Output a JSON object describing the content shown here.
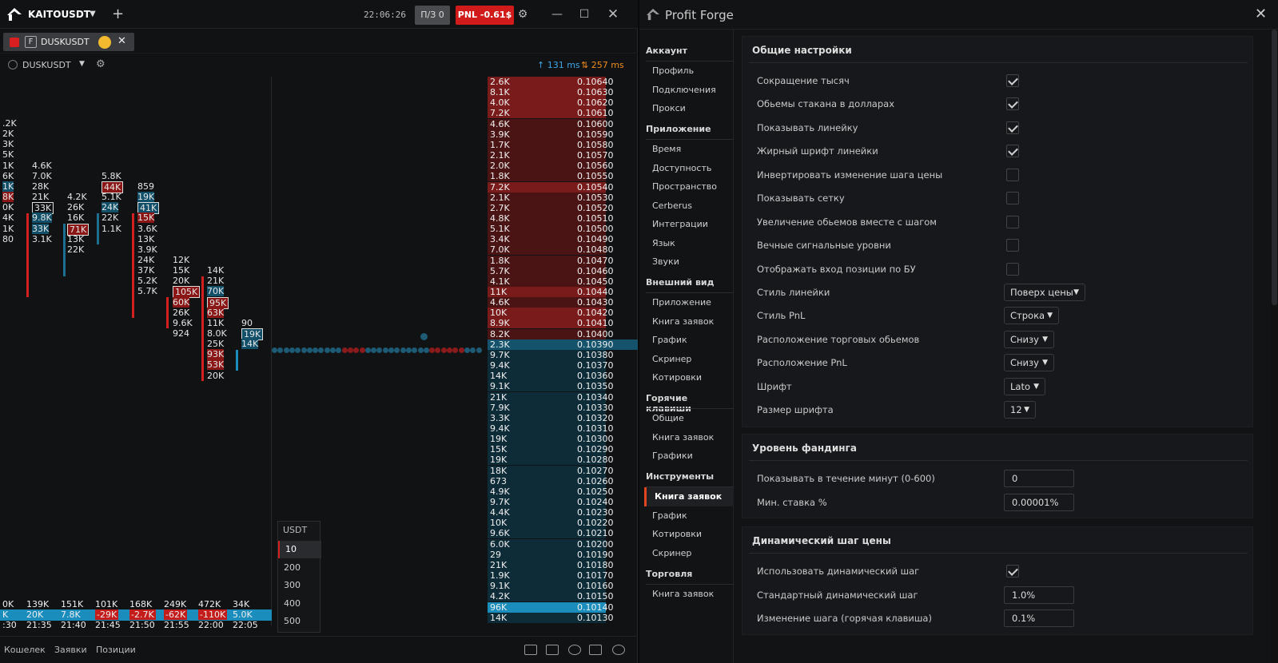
{
  "titlebar": {
    "symbol": "KAITOUSDT",
    "time": "22:06:26",
    "pz": "П/З 0",
    "pnl": "PNL -0.61$"
  },
  "tab": {
    "f": "F",
    "name": "DUSKUSDT"
  },
  "symrow": {
    "name": "DUSKUSDT",
    "ping1": "↑ 131 ms",
    "ping2": "⇅ 257 ms"
  },
  "cluster": {
    "edge": [
      ".2K",
      "2K",
      "3K",
      "5K",
      "1K",
      "6K",
      "1K",
      "8K",
      "0K",
      "4K",
      "1K",
      "80"
    ],
    "c1": [
      "4.6K",
      "7.0K",
      "28K",
      "21K",
      "33K",
      "9.8K",
      "33K",
      "3.1K"
    ],
    "c2": [
      "4.2K",
      "26K",
      "16K",
      "71K",
      "13K",
      "22K"
    ],
    "c3": [
      "5.8K",
      "44K",
      "5.1K",
      "24K",
      "22K",
      "1.1K"
    ],
    "c4": [
      "859",
      "19K",
      "41K",
      "15K",
      "3.6K",
      "13K",
      "3.9K",
      "24K",
      "37K",
      "5.2K",
      "5.7K"
    ],
    "c5": [
      "12K",
      "15K",
      "20K",
      "105K",
      "60K",
      "26K",
      "9.6K",
      "924"
    ],
    "c6": [
      "14K",
      "21K",
      "70K",
      "95K",
      "63K",
      "11K",
      "8.0K",
      "25K",
      "93K",
      "53K",
      "20K"
    ],
    "c7": [
      "90",
      "19K",
      "14K"
    ],
    "totals": [
      "0K",
      "139K",
      "151K",
      "101K",
      "168K",
      "249K",
      "472K",
      "34K"
    ],
    "delta": [
      "K",
      "20K",
      "7.8K",
      "-29K",
      "-2.7K",
      "-62K",
      "-110K",
      "5.0K"
    ],
    "times": [
      ":30",
      "21:35",
      "21:40",
      "21:45",
      "21:50",
      "21:55",
      "22:00",
      "22:05"
    ]
  },
  "lot": {
    "header": "USDT",
    "options": [
      "10",
      "200",
      "300",
      "400",
      "500"
    ]
  },
  "book": {
    "asks": [
      [
        "2.6K",
        "0.10640"
      ],
      [
        "8.1K",
        "0.10630"
      ],
      [
        "4.0K",
        "0.10620"
      ],
      [
        "7.2K",
        "0.10610"
      ],
      [
        "4.6K",
        "0.10600"
      ],
      [
        "3.9K",
        "0.10590"
      ],
      [
        "1.7K",
        "0.10580"
      ],
      [
        "2.1K",
        "0.10570"
      ],
      [
        "2.0K",
        "0.10560"
      ],
      [
        "1.8K",
        "0.10550"
      ],
      [
        "7.2K",
        "0.10540"
      ],
      [
        "2.1K",
        "0.10530"
      ],
      [
        "2.7K",
        "0.10520"
      ],
      [
        "4.8K",
        "0.10510"
      ],
      [
        "5.1K",
        "0.10500"
      ],
      [
        "3.4K",
        "0.10490"
      ],
      [
        "7.0K",
        "0.10480"
      ],
      [
        "1.8K",
        "0.10470"
      ],
      [
        "5.7K",
        "0.10460"
      ],
      [
        "4.1K",
        "0.10450"
      ],
      [
        "11K",
        "0.10440"
      ],
      [
        "4.6K",
        "0.10430"
      ],
      [
        "10K",
        "0.10420"
      ],
      [
        "8.9K",
        "0.10410"
      ],
      [
        "8.2K",
        "0.10400"
      ]
    ],
    "bids": [
      [
        "2.3K",
        "0.10390"
      ],
      [
        "9.7K",
        "0.10380"
      ],
      [
        "9.4K",
        "0.10370"
      ],
      [
        "14K",
        "0.10360"
      ],
      [
        "9.1K",
        "0.10350"
      ],
      [
        "21K",
        "0.10340"
      ],
      [
        "7.9K",
        "0.10330"
      ],
      [
        "3.3K",
        "0.10320"
      ],
      [
        "9.4K",
        "0.10310"
      ],
      [
        "19K",
        "0.10300"
      ],
      [
        "15K",
        "0.10290"
      ],
      [
        "19K",
        "0.10280"
      ],
      [
        "18K",
        "0.10270"
      ],
      [
        "673",
        "0.10260"
      ],
      [
        "4.9K",
        "0.10250"
      ],
      [
        "9.7K",
        "0.10240"
      ],
      [
        "4.4K",
        "0.10230"
      ],
      [
        "10K",
        "0.10220"
      ],
      [
        "9.6K",
        "0.10210"
      ],
      [
        "6.0K",
        "0.10200"
      ],
      [
        "29",
        "0.10190"
      ],
      [
        "21K",
        "0.10180"
      ],
      [
        "1.9K",
        "0.10170"
      ],
      [
        "9.1K",
        "0.10160"
      ],
      [
        "4.2K",
        "0.10150"
      ],
      [
        "96K",
        "0.10140"
      ],
      [
        "14K",
        "0.10130"
      ]
    ]
  },
  "statusbar": {
    "wallet": "Кошелек",
    "orders": "Заявки",
    "positions": "Позиции"
  },
  "settings": {
    "app_title": "Profit Forge",
    "nav": {
      "s_account": "Аккаунт",
      "profile": "Профиль",
      "connections": "Подключения",
      "proxy": "Прокси",
      "s_app": "Приложение",
      "time": "Время",
      "access": "Доступность",
      "spaces": "Пространство",
      "cerberus": "Cerberus",
      "integrations": "Интеграции",
      "language": "Язык",
      "sounds": "Звуки",
      "s_view": "Внешний вид",
      "v_app": "Приложение",
      "v_book": "Книга заявок",
      "v_chart": "График",
      "v_screener": "Скринер",
      "v_quotes": "Котировки",
      "s_hotkeys": "Горячие клавиши",
      "h_general": "Общие",
      "h_book": "Книга заявок",
      "h_charts": "Графики",
      "s_tools": "Инструменты",
      "t_book": "Книга заявок",
      "t_chart": "График",
      "t_quotes": "Котировки",
      "t_screener": "Скринер",
      "s_trading": "Торговля",
      "tr_book": "Книга заявок"
    },
    "general": {
      "title": "Общие настройки",
      "rows": [
        "Сокращение тысяч",
        "Обьемы стакана в долларах",
        "Показывать линейку",
        "Жирный шрифт линейки",
        "Инвертировать изменение шага цены",
        "Показывать сетку",
        "Увеличение обьемов вместе с шагом",
        "Вечные сигнальные уровни",
        "Отображать вход позиции по БУ",
        "Стиль линейки",
        "Стиль PnL",
        "Расположение торговых обьемов",
        "Расположение PnL",
        "Шрифт",
        "Размер шрифта"
      ],
      "dd": [
        "Поверх цены",
        "Строка",
        "Снизу",
        "Снизу",
        "Lato",
        "12"
      ]
    },
    "funding": {
      "title": "Уровень фандинга",
      "r1": "Показывать в течение минут (0-600)",
      "v1": "0",
      "r2": "Мин. ставка %",
      "v2": "0.00001%"
    },
    "dynamic": {
      "title": "Динамический шаг цены",
      "r1": "Использовать динамический шаг",
      "r2": "Стандартный динамический шаг",
      "v2": "1.0%",
      "r3": "Изменение шага (горячая клавиша)",
      "v3": "0.1%"
    }
  }
}
